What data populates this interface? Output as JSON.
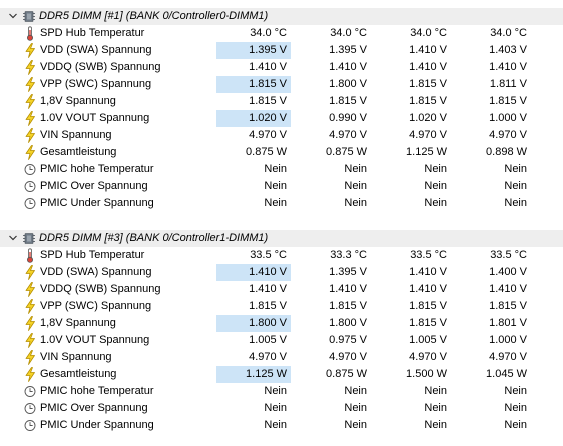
{
  "sections": [
    {
      "title": "DDR5 DIMM [#1] (BANK 0/Controller0-DIMM1)",
      "rows": [
        {
          "label": "SPD Hub Temperatur",
          "icon": "thermometer-icon",
          "values": [
            "34.0 °C",
            "34.0 °C",
            "34.0 °C",
            "34.0 °C"
          ],
          "highlight": [
            false,
            false,
            false,
            false
          ]
        },
        {
          "label": "VDD (SWA) Spannung",
          "icon": "lightning-icon",
          "values": [
            "1.395 V",
            "1.395 V",
            "1.410 V",
            "1.403 V"
          ],
          "highlight": [
            true,
            false,
            false,
            false
          ]
        },
        {
          "label": "VDDQ (SWB) Spannung",
          "icon": "lightning-icon",
          "values": [
            "1.410 V",
            "1.410 V",
            "1.410 V",
            "1.410 V"
          ],
          "highlight": [
            false,
            false,
            false,
            false
          ]
        },
        {
          "label": "VPP (SWC) Spannung",
          "icon": "lightning-icon",
          "values": [
            "1.815 V",
            "1.800 V",
            "1.815 V",
            "1.811 V"
          ],
          "highlight": [
            true,
            false,
            false,
            false
          ]
        },
        {
          "label": "1,8V Spannung",
          "icon": "lightning-icon",
          "values": [
            "1.815 V",
            "1.815 V",
            "1.815 V",
            "1.815 V"
          ],
          "highlight": [
            false,
            false,
            false,
            false
          ]
        },
        {
          "label": "1.0V VOUT Spannung",
          "icon": "lightning-icon",
          "values": [
            "1.020 V",
            "0.990 V",
            "1.020 V",
            "1.000 V"
          ],
          "highlight": [
            true,
            false,
            false,
            false
          ]
        },
        {
          "label": "VIN Spannung",
          "icon": "lightning-icon",
          "values": [
            "4.970 V",
            "4.970 V",
            "4.970 V",
            "4.970 V"
          ],
          "highlight": [
            false,
            false,
            false,
            false
          ]
        },
        {
          "label": "Gesamtleistung",
          "icon": "lightning-icon",
          "values": [
            "0.875 W",
            "0.875 W",
            "1.125 W",
            "0.898 W"
          ],
          "highlight": [
            false,
            false,
            false,
            false
          ]
        },
        {
          "label": "PMIC hohe Temperatur",
          "icon": "clock-icon",
          "values": [
            "Nein",
            "Nein",
            "Nein",
            "Nein"
          ],
          "highlight": [
            false,
            false,
            false,
            false
          ]
        },
        {
          "label": "PMIC Over Spannung",
          "icon": "clock-icon",
          "values": [
            "Nein",
            "Nein",
            "Nein",
            "Nein"
          ],
          "highlight": [
            false,
            false,
            false,
            false
          ]
        },
        {
          "label": "PMIC Under Spannung",
          "icon": "clock-icon",
          "values": [
            "Nein",
            "Nein",
            "Nein",
            "Nein"
          ],
          "highlight": [
            false,
            false,
            false,
            false
          ]
        }
      ]
    },
    {
      "title": "DDR5 DIMM [#3] (BANK 0/Controller1-DIMM1)",
      "rows": [
        {
          "label": "SPD Hub Temperatur",
          "icon": "thermometer-icon",
          "values": [
            "33.5 °C",
            "33.3 °C",
            "33.5 °C",
            "33.5 °C"
          ],
          "highlight": [
            false,
            false,
            false,
            false
          ]
        },
        {
          "label": "VDD (SWA) Spannung",
          "icon": "lightning-icon",
          "values": [
            "1.410 V",
            "1.395 V",
            "1.410 V",
            "1.400 V"
          ],
          "highlight": [
            true,
            false,
            false,
            false
          ]
        },
        {
          "label": "VDDQ (SWB) Spannung",
          "icon": "lightning-icon",
          "values": [
            "1.410 V",
            "1.410 V",
            "1.410 V",
            "1.410 V"
          ],
          "highlight": [
            false,
            false,
            false,
            false
          ]
        },
        {
          "label": "VPP (SWC) Spannung",
          "icon": "lightning-icon",
          "values": [
            "1.815 V",
            "1.815 V",
            "1.815 V",
            "1.815 V"
          ],
          "highlight": [
            false,
            false,
            false,
            false
          ]
        },
        {
          "label": "1,8V Spannung",
          "icon": "lightning-icon",
          "values": [
            "1.800 V",
            "1.800 V",
            "1.815 V",
            "1.801 V"
          ],
          "highlight": [
            true,
            false,
            false,
            false
          ]
        },
        {
          "label": "1.0V VOUT Spannung",
          "icon": "lightning-icon",
          "values": [
            "1.005 V",
            "0.975 V",
            "1.005 V",
            "1.000 V"
          ],
          "highlight": [
            false,
            false,
            false,
            false
          ]
        },
        {
          "label": "VIN Spannung",
          "icon": "lightning-icon",
          "values": [
            "4.970 V",
            "4.970 V",
            "4.970 V",
            "4.970 V"
          ],
          "highlight": [
            false,
            false,
            false,
            false
          ]
        },
        {
          "label": "Gesamtleistung",
          "icon": "lightning-icon",
          "values": [
            "1.125 W",
            "0.875 W",
            "1.500 W",
            "1.045 W"
          ],
          "highlight": [
            true,
            false,
            false,
            false
          ]
        },
        {
          "label": "PMIC hohe Temperatur",
          "icon": "clock-icon",
          "values": [
            "Nein",
            "Nein",
            "Nein",
            "Nein"
          ],
          "highlight": [
            false,
            false,
            false,
            false
          ]
        },
        {
          "label": "PMIC Over Spannung",
          "icon": "clock-icon",
          "values": [
            "Nein",
            "Nein",
            "Nein",
            "Nein"
          ],
          "highlight": [
            false,
            false,
            false,
            false
          ]
        },
        {
          "label": "PMIC Under Spannung",
          "icon": "clock-icon",
          "values": [
            "Nein",
            "Nein",
            "Nein",
            "Nein"
          ],
          "highlight": [
            false,
            false,
            false,
            false
          ]
        }
      ]
    }
  ],
  "colors": {
    "section_header_bg": "#eeeeee",
    "highlight_cell_bg": "#cde4f7",
    "lightning_fill": "#f5d327",
    "thermometer_bulb": "#d9453a"
  }
}
